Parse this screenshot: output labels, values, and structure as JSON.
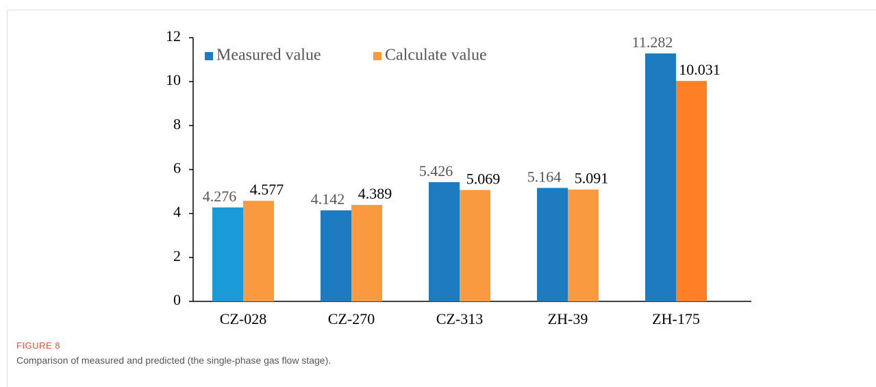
{
  "chart_data": {
    "type": "bar",
    "categories": [
      "CZ-028",
      "CZ-270",
      "CZ-313",
      "ZH-39",
      "ZH-175"
    ],
    "series": [
      {
        "name": "Measured value",
        "color": "#1f7bbf",
        "colors": [
          "#1a9bd7",
          "#1f7bbf",
          "#1f7bbf",
          "#1f7bbf",
          "#1f7bbf"
        ],
        "label_color": "#555",
        "values": [
          4.276,
          4.142,
          5.426,
          5.164,
          11.282
        ]
      },
      {
        "name": "Calculate value",
        "color": "#f99a40",
        "colors": [
          "#f99a40",
          "#f99a40",
          "#f99a40",
          "#f99a40",
          "#ff7f27"
        ],
        "label_color": "#000",
        "values": [
          4.577,
          4.389,
          5.069,
          5.091,
          10.031
        ]
      }
    ],
    "ylim": [
      0,
      12
    ],
    "yticks": [
      0,
      2,
      4,
      6,
      8,
      10,
      12
    ],
    "grid": false
  },
  "caption": {
    "label": "FIGURE 8",
    "text": "Comparison of measured and predicted (the single-phase gas flow stage)."
  }
}
